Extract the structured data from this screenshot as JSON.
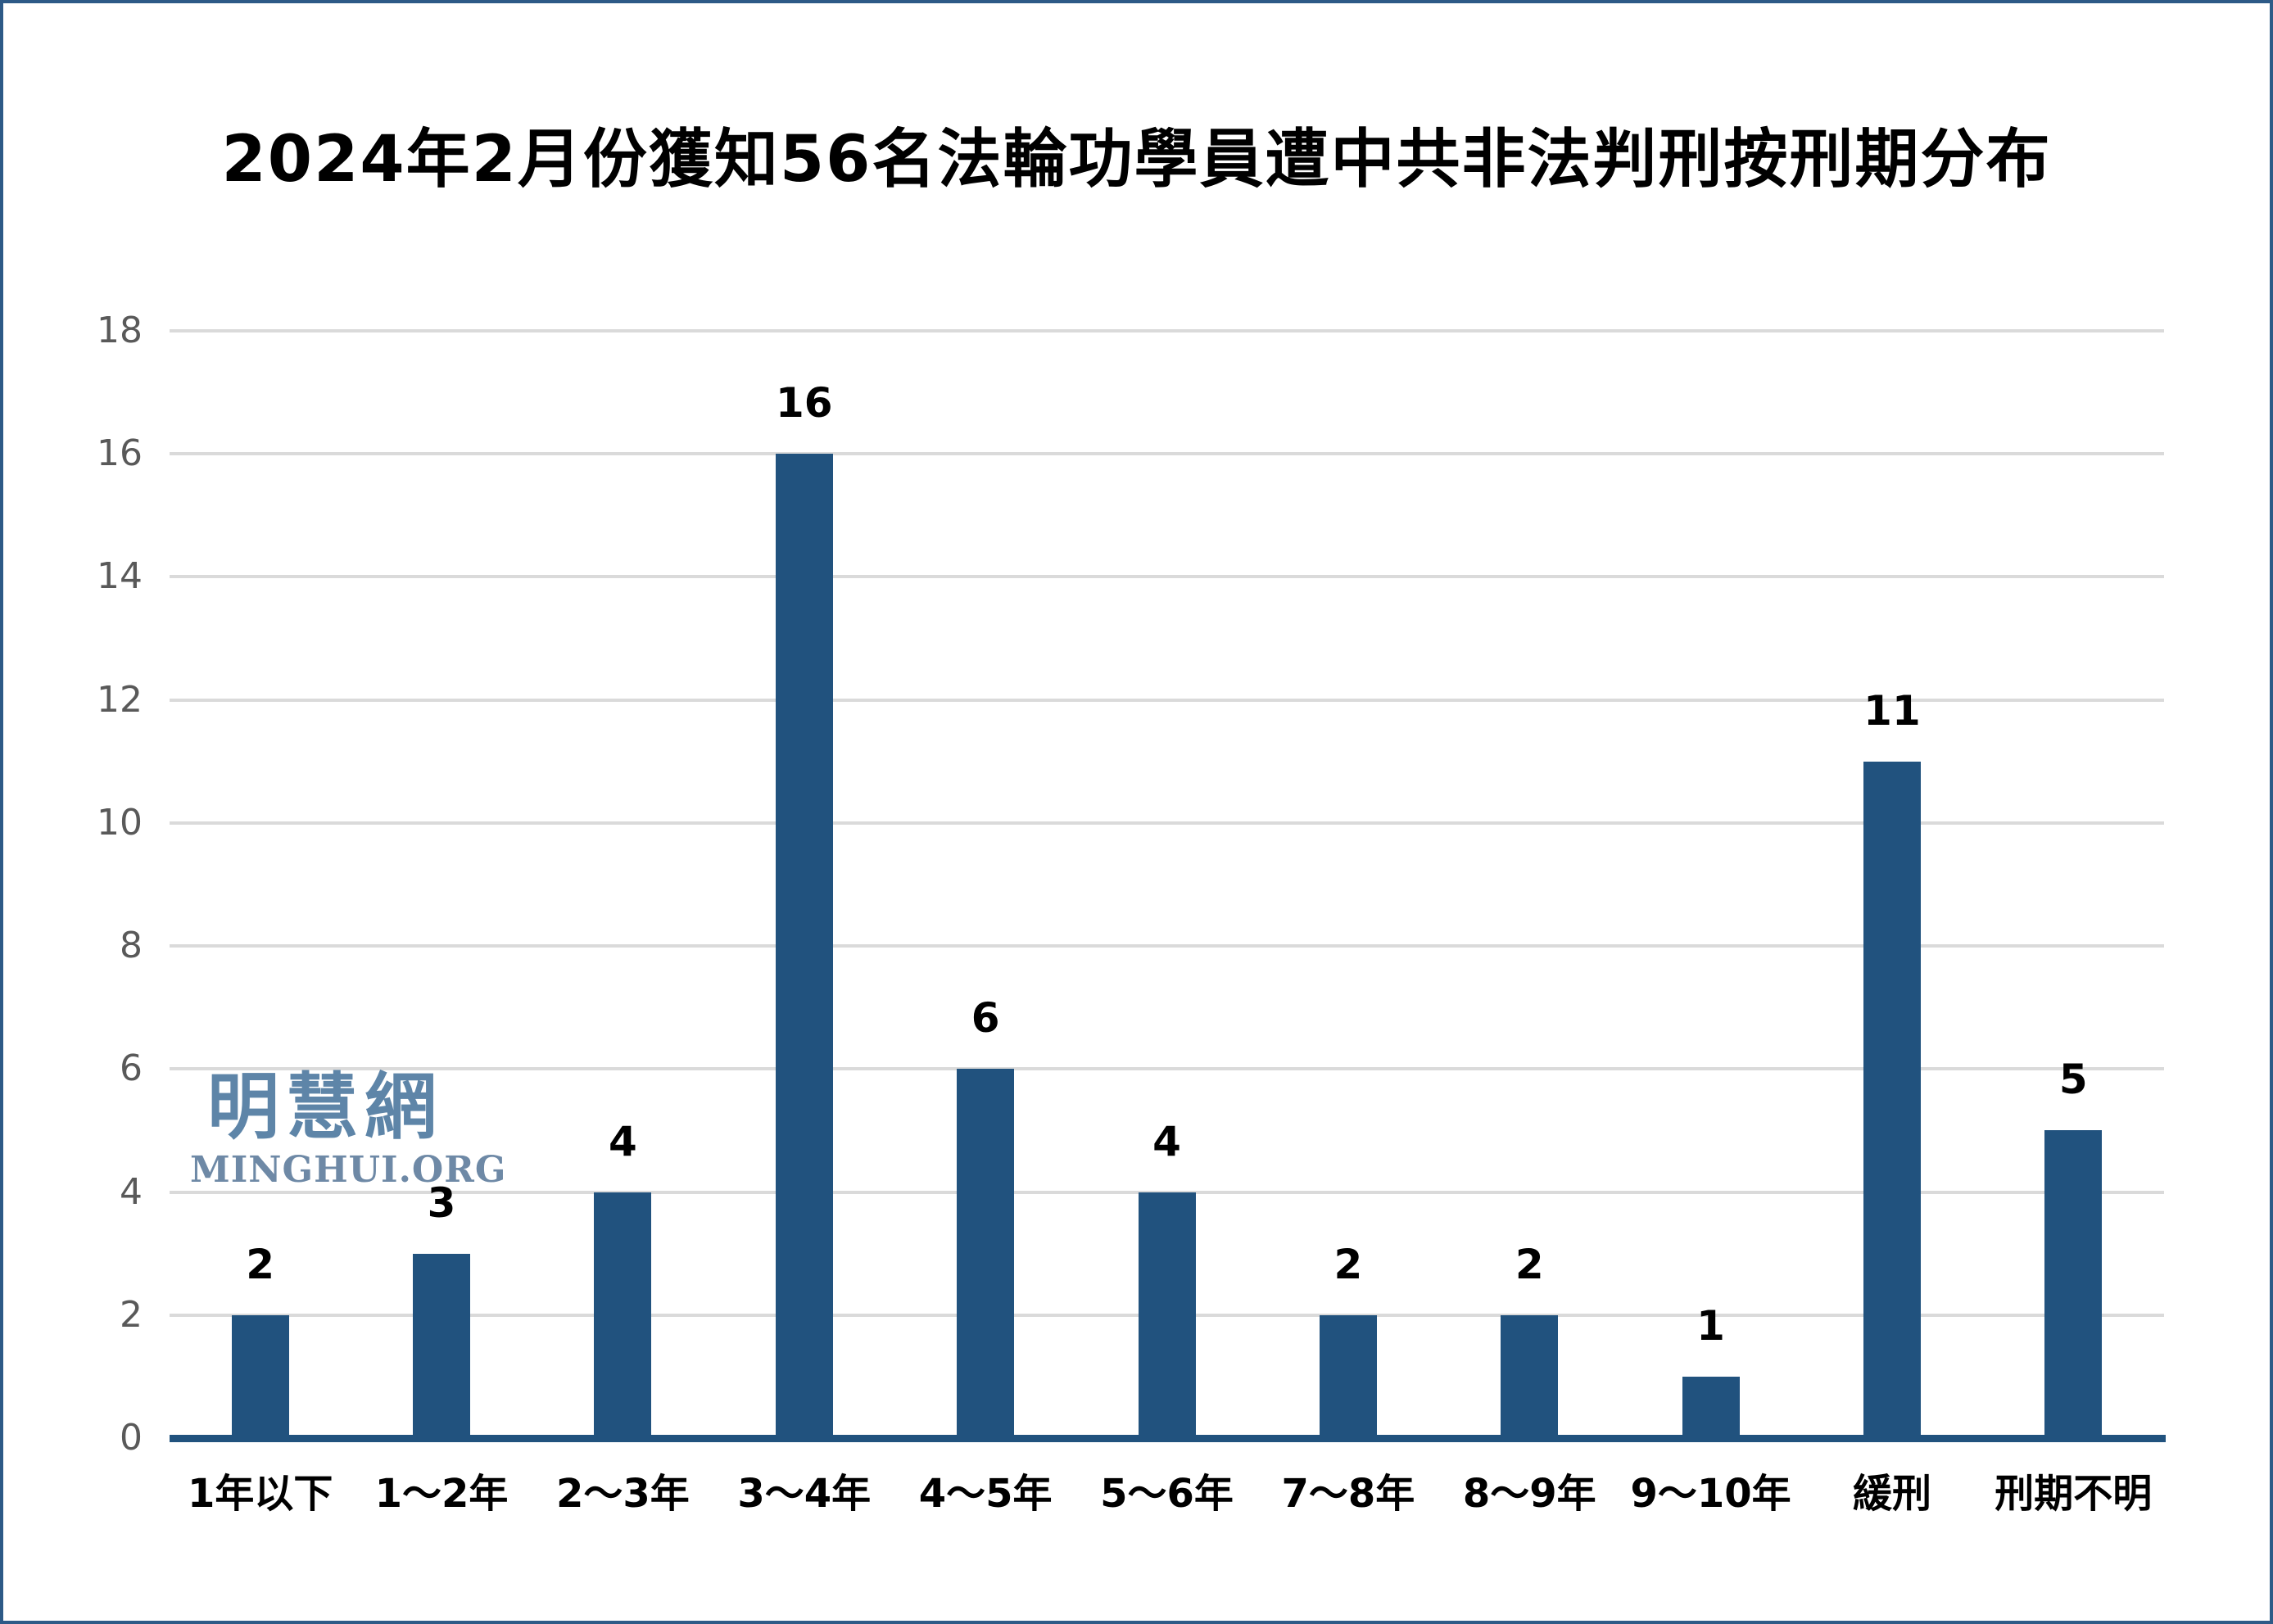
{
  "title": "2024年2月份獲知56名法輪功學員遭中共非法判刑按刑期分布",
  "watermark": {
    "cjk": "明慧網",
    "latin": "MINGHUI.ORG"
  },
  "colors": {
    "bar": "#21527e",
    "baseline": "#21527e",
    "gridline": "#dadada",
    "ytick_text": "#595959",
    "label_text": "#000000",
    "watermark_cjk": "#5e85a8",
    "watermark_latin": "#6e89a6",
    "border": "#2d5a87",
    "background": "#ffffff"
  },
  "chart_data": {
    "type": "bar",
    "title": "2024年2月份獲知56名法輪功學員遭中共非法判刑按刑期分布",
    "categories": [
      "1年以下",
      "1～2年",
      "2～3年",
      "3～4年",
      "4～5年",
      "5～6年",
      "7～8年",
      "8～9年",
      "9～10年",
      "緩刑",
      "刑期不明"
    ],
    "values": [
      2,
      3,
      4,
      16,
      6,
      4,
      2,
      2,
      1,
      11,
      5
    ],
    "data_labels": [
      2,
      3,
      4,
      16,
      6,
      4,
      2,
      2,
      1,
      11,
      5
    ],
    "xlabel": "",
    "ylabel": "",
    "ylim": [
      0,
      18
    ],
    "yticks": [
      0,
      2,
      4,
      6,
      8,
      10,
      12,
      14,
      16,
      18
    ],
    "grid": true,
    "legend": false,
    "bar_color": "#21527e",
    "total_mentioned_in_title": 56
  }
}
